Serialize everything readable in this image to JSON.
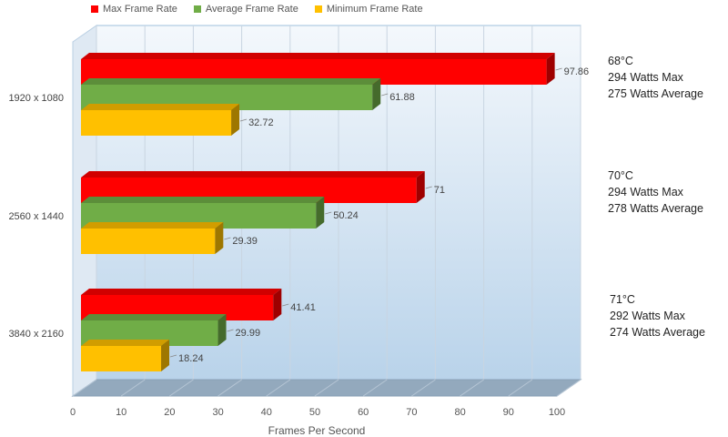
{
  "chart_data": {
    "type": "bar",
    "orientation": "horizontal",
    "style": "3d",
    "categories": [
      "1920 x 1080",
      "2560 x 1440",
      "3840 x 2160"
    ],
    "series": [
      {
        "name": "Max Frame Rate",
        "color": "#ff0000",
        "values": [
          97.86,
          71,
          41.41
        ],
        "labels": [
          "97.86",
          "71",
          "41.41"
        ]
      },
      {
        "name": "Average Frame Rate",
        "color": "#70ad47",
        "values": [
          61.88,
          50.24,
          29.99
        ],
        "labels": [
          "61.88",
          "50.24",
          "29.99"
        ]
      },
      {
        "name": "Minimum Frame Rate",
        "color": "#ffc000",
        "values": [
          32.72,
          29.39,
          18.24
        ],
        "labels": [
          "32.72",
          "29.39",
          "18.24"
        ]
      }
    ],
    "xlabel": "Frames Per Second",
    "ylabel": "",
    "xlim": [
      0,
      100
    ],
    "xticks": [
      "0",
      "10",
      "20",
      "30",
      "40",
      "50",
      "60",
      "70",
      "80",
      "90",
      "100"
    ],
    "grid": true,
    "legend_position": "top"
  },
  "annotations": [
    {
      "lines": [
        "68°C",
        "294 Watts Max",
        "275 Watts Average"
      ]
    },
    {
      "lines": [
        "70°C",
        "294 Watts Max",
        "278 Watts Average"
      ]
    },
    {
      "lines": [
        "71°C",
        "292 Watts Max",
        "274 Watts Average"
      ]
    }
  ]
}
